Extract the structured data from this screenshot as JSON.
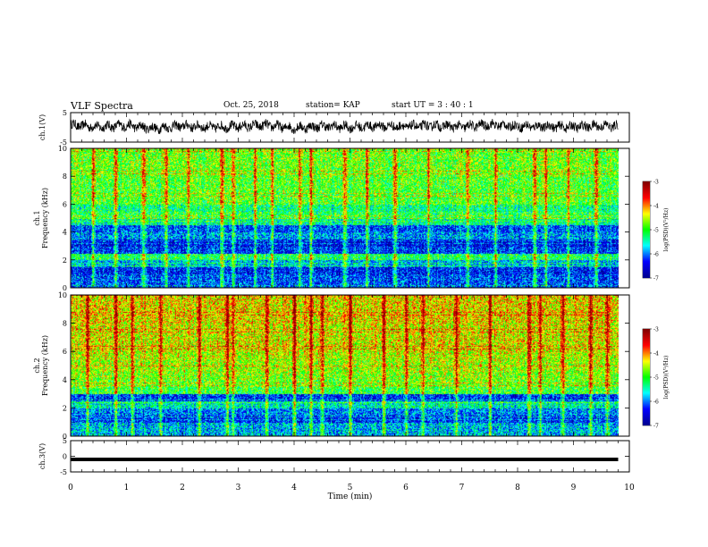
{
  "header": {
    "title": "VLF Spectra",
    "date": "Oct. 25, 2018",
    "station": "station= KAP",
    "start_ut": "start UT = 3 : 40 : 1"
  },
  "chart_data": [
    {
      "type": "line",
      "panel": "ch1-waveform",
      "ylabel": "ch.1(V)",
      "ylim": [
        -5,
        5
      ],
      "yticks": [
        "5",
        "-5"
      ],
      "x": [
        0,
        0.5,
        1,
        1.5,
        2,
        2.5,
        3,
        3.5,
        4,
        4.5,
        5,
        5.5,
        6,
        6.5,
        7,
        7.5,
        8,
        8.5,
        9,
        9.5,
        9.8
      ],
      "values": [
        0.8,
        0.2,
        0.6,
        -0.3,
        0.5,
        0.1,
        0.3,
        0.7,
        -0.2,
        0.4,
        0.1,
        0.5,
        0.3,
        0.6,
        0.2,
        0.9,
        0.4,
        0.3,
        0.2,
        0.5,
        0.4
      ],
      "color": "#000000"
    },
    {
      "type": "heatmap",
      "panel": "ch1-spectrogram",
      "ylabel": "ch.1 Frequency (kHz)",
      "ylim": [
        0,
        10
      ],
      "yticks": [
        "0",
        "2",
        "4",
        "6",
        "8",
        "10"
      ],
      "xlim": [
        0,
        10
      ],
      "data_end_min": 9.8,
      "colorbar": {
        "label": "log(PSD)(V²/Hz)",
        "range": [
          -7,
          -3
        ],
        "ticks": [
          "-3",
          "-4",
          "-5",
          "-6",
          "-7"
        ]
      },
      "freq_bands_khz": [
        0,
        1,
        1.5,
        2,
        2.5,
        3,
        3.5,
        4,
        4.5,
        5,
        5.5,
        6,
        8,
        10
      ],
      "band_levels": [
        -6.2,
        -6.4,
        -5.8,
        -5.2,
        -6.3,
        -6.5,
        -5.9,
        -6.2,
        -5.4,
        -5.1,
        -5.3,
        -4.9,
        -4.8
      ],
      "bursts_min": [
        0.4,
        0.8,
        1.3,
        1.7,
        2.1,
        2.7,
        2.9,
        3.3,
        3.6,
        4.1,
        4.3,
        4.9,
        5.3,
        5.8,
        6.4,
        7.1,
        7.6,
        8.3,
        8.5,
        8.9,
        9.4
      ]
    },
    {
      "type": "heatmap",
      "panel": "ch2-spectrogram",
      "ylabel": "ch.2 Frequency (kHz)",
      "ylim": [
        0,
        10
      ],
      "yticks": [
        "0",
        "2",
        "4",
        "6",
        "8",
        "10"
      ],
      "xlim": [
        0,
        10
      ],
      "data_end_min": 9.8,
      "colorbar": {
        "label": "log(PSD)(V²/Hz)",
        "range": [
          -7,
          -3
        ],
        "ticks": [
          "-3",
          "-4",
          "-5",
          "-6",
          "-7"
        ]
      },
      "freq_bands_khz": [
        0,
        1,
        1.5,
        2,
        2.5,
        3,
        3.5,
        4,
        4.5,
        5,
        5.5,
        6,
        8,
        10
      ],
      "band_levels": [
        -5.8,
        -6.3,
        -6.0,
        -5.5,
        -6.3,
        -5.0,
        -4.8,
        -4.7,
        -4.6,
        -4.6,
        -4.5,
        -4.4,
        -4.3
      ],
      "bursts_min": [
        0.3,
        0.8,
        1.1,
        1.6,
        2.3,
        2.8,
        2.9,
        3.5,
        4.0,
        4.3,
        4.5,
        5.0,
        5.6,
        6.0,
        6.3,
        6.9,
        7.5,
        8.2,
        8.4,
        8.8,
        9.3,
        9.6
      ]
    },
    {
      "type": "line",
      "panel": "ch3-waveform",
      "ylabel": "ch.3(V)",
      "ylim": [
        -5,
        5
      ],
      "yticks": [
        "5",
        "0",
        "-5"
      ],
      "x": [
        0,
        9.8
      ],
      "values": [
        -1,
        -1
      ],
      "color": "#000000"
    }
  ],
  "x_axis": {
    "label": "Time (min)",
    "ticks": [
      "0",
      "1",
      "2",
      "3",
      "4",
      "5",
      "6",
      "7",
      "8",
      "9",
      "10"
    ],
    "range": [
      0,
      10
    ]
  },
  "colormap": [
    "#00008f",
    "#0000ff",
    "#00ffff",
    "#00ff00",
    "#ffff00",
    "#ff0000",
    "#800000"
  ]
}
